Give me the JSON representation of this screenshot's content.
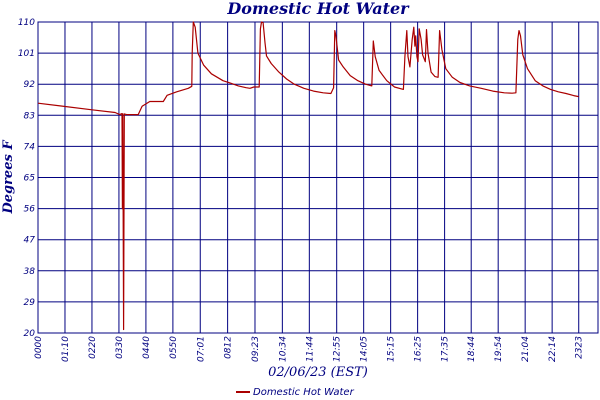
{
  "chart_data": {
    "type": "line",
    "title": "Domestic Hot Water",
    "xlabel": "02/06/23 (EST)",
    "ylabel": "Degrees F",
    "ylim": [
      20,
      110
    ],
    "yticks": [
      "20",
      "29",
      "38",
      "47",
      "56",
      "65",
      "74",
      "83",
      "92",
      "101",
      "110"
    ],
    "xlim_minutes": [
      0,
      1453
    ],
    "xticks": [
      {
        "label": "0000",
        "minute": 0
      },
      {
        "label": "01:10",
        "minute": 70
      },
      {
        "label": "0220",
        "minute": 140
      },
      {
        "label": "0330",
        "minute": 210
      },
      {
        "label": "0440",
        "minute": 280
      },
      {
        "label": "0550",
        "minute": 350
      },
      {
        "label": "07:01",
        "minute": 421
      },
      {
        "label": "0812",
        "minute": 492
      },
      {
        "label": "09:23",
        "minute": 563
      },
      {
        "label": "10:34",
        "minute": 634
      },
      {
        "label": "11:44",
        "minute": 704
      },
      {
        "label": "12:55",
        "minute": 775
      },
      {
        "label": "14:05",
        "minute": 845
      },
      {
        "label": "15:15",
        "minute": 915
      },
      {
        "label": "16:25",
        "minute": 985
      },
      {
        "label": "17:35",
        "minute": 1055
      },
      {
        "label": "18:44",
        "minute": 1124
      },
      {
        "label": "19:54",
        "minute": 1194
      },
      {
        "label": "21:04",
        "minute": 1264
      },
      {
        "label": "22:14",
        "minute": 1334
      },
      {
        "label": "2323",
        "minute": 1403
      }
    ],
    "grid": true,
    "legend": "bottom-center",
    "color": "#aa0000",
    "series": [
      {
        "name": "Domestic Hot Water",
        "points": [
          [
            0,
            86.5
          ],
          [
            60,
            85.7
          ],
          [
            140,
            84.6
          ],
          [
            200,
            83.8
          ],
          [
            212,
            83.2
          ],
          [
            218,
            83.5
          ],
          [
            219,
            56
          ],
          [
            220,
            83.4
          ],
          [
            222,
            21
          ],
          [
            224,
            83.4
          ],
          [
            230,
            83.2
          ],
          [
            260,
            83.2
          ],
          [
            270,
            85.6
          ],
          [
            290,
            87.0
          ],
          [
            310,
            87.0
          ],
          [
            325,
            87.0
          ],
          [
            335,
            88.8
          ],
          [
            360,
            89.8
          ],
          [
            390,
            90.8
          ],
          [
            399,
            91.4
          ],
          [
            400,
            101
          ],
          [
            403,
            110
          ],
          [
            408,
            108.5
          ],
          [
            415,
            101
          ],
          [
            430,
            97.5
          ],
          [
            450,
            95
          ],
          [
            480,
            93
          ],
          [
            500,
            92.3
          ],
          [
            520,
            91.5
          ],
          [
            540,
            91.0
          ],
          [
            550,
            90.8
          ],
          [
            560,
            91.2
          ],
          [
            574,
            91.2
          ],
          [
            577,
            108
          ],
          [
            580,
            110
          ],
          [
            584,
            109.8
          ],
          [
            589,
            104
          ],
          [
            593,
            100.2
          ],
          [
            605,
            98.0
          ],
          [
            625,
            95.5
          ],
          [
            645,
            93.5
          ],
          [
            665,
            92.0
          ],
          [
            690,
            90.8
          ],
          [
            715,
            90.0
          ],
          [
            740,
            89.5
          ],
          [
            760,
            89.3
          ],
          [
            767,
            91.0
          ],
          [
            770,
            107.5
          ],
          [
            773,
            106
          ],
          [
            780,
            99
          ],
          [
            792,
            97
          ],
          [
            810,
            94.5
          ],
          [
            830,
            93.0
          ],
          [
            850,
            92.0
          ],
          [
            866,
            91.5
          ],
          [
            870,
            104.5
          ],
          [
            875,
            100
          ],
          [
            885,
            96
          ],
          [
            905,
            93
          ],
          [
            925,
            91.2
          ],
          [
            948,
            90.5
          ],
          [
            952,
            100
          ],
          [
            957,
            107.5
          ],
          [
            960,
            100
          ],
          [
            965,
            97
          ],
          [
            971,
            105
          ],
          [
            975,
            108.5
          ],
          [
            978,
            103
          ],
          [
            980,
            106
          ],
          [
            983,
            100
          ],
          [
            986,
            98.5
          ],
          [
            989,
            108
          ],
          [
            994,
            105
          ],
          [
            998,
            100.5
          ],
          [
            1005,
            98.5
          ],
          [
            1008,
            107.8
          ],
          [
            1012,
            101
          ],
          [
            1020,
            95.5
          ],
          [
            1030,
            94.2
          ],
          [
            1038,
            94.0
          ],
          [
            1042,
            107.5
          ],
          [
            1048,
            102
          ],
          [
            1058,
            96.5
          ],
          [
            1075,
            94.0
          ],
          [
            1095,
            92.5
          ],
          [
            1120,
            91.5
          ],
          [
            1150,
            90.8
          ],
          [
            1180,
            90.0
          ],
          [
            1210,
            89.5
          ],
          [
            1230,
            89.4
          ],
          [
            1240,
            89.5
          ],
          [
            1245,
            105
          ],
          [
            1248,
            107.5
          ],
          [
            1252,
            106
          ],
          [
            1258,
            100.5
          ],
          [
            1270,
            96.5
          ],
          [
            1290,
            93.0
          ],
          [
            1310,
            91.5
          ],
          [
            1330,
            90.5
          ],
          [
            1350,
            89.8
          ],
          [
            1370,
            89.3
          ],
          [
            1390,
            88.7
          ],
          [
            1403,
            88.4
          ]
        ]
      }
    ]
  }
}
